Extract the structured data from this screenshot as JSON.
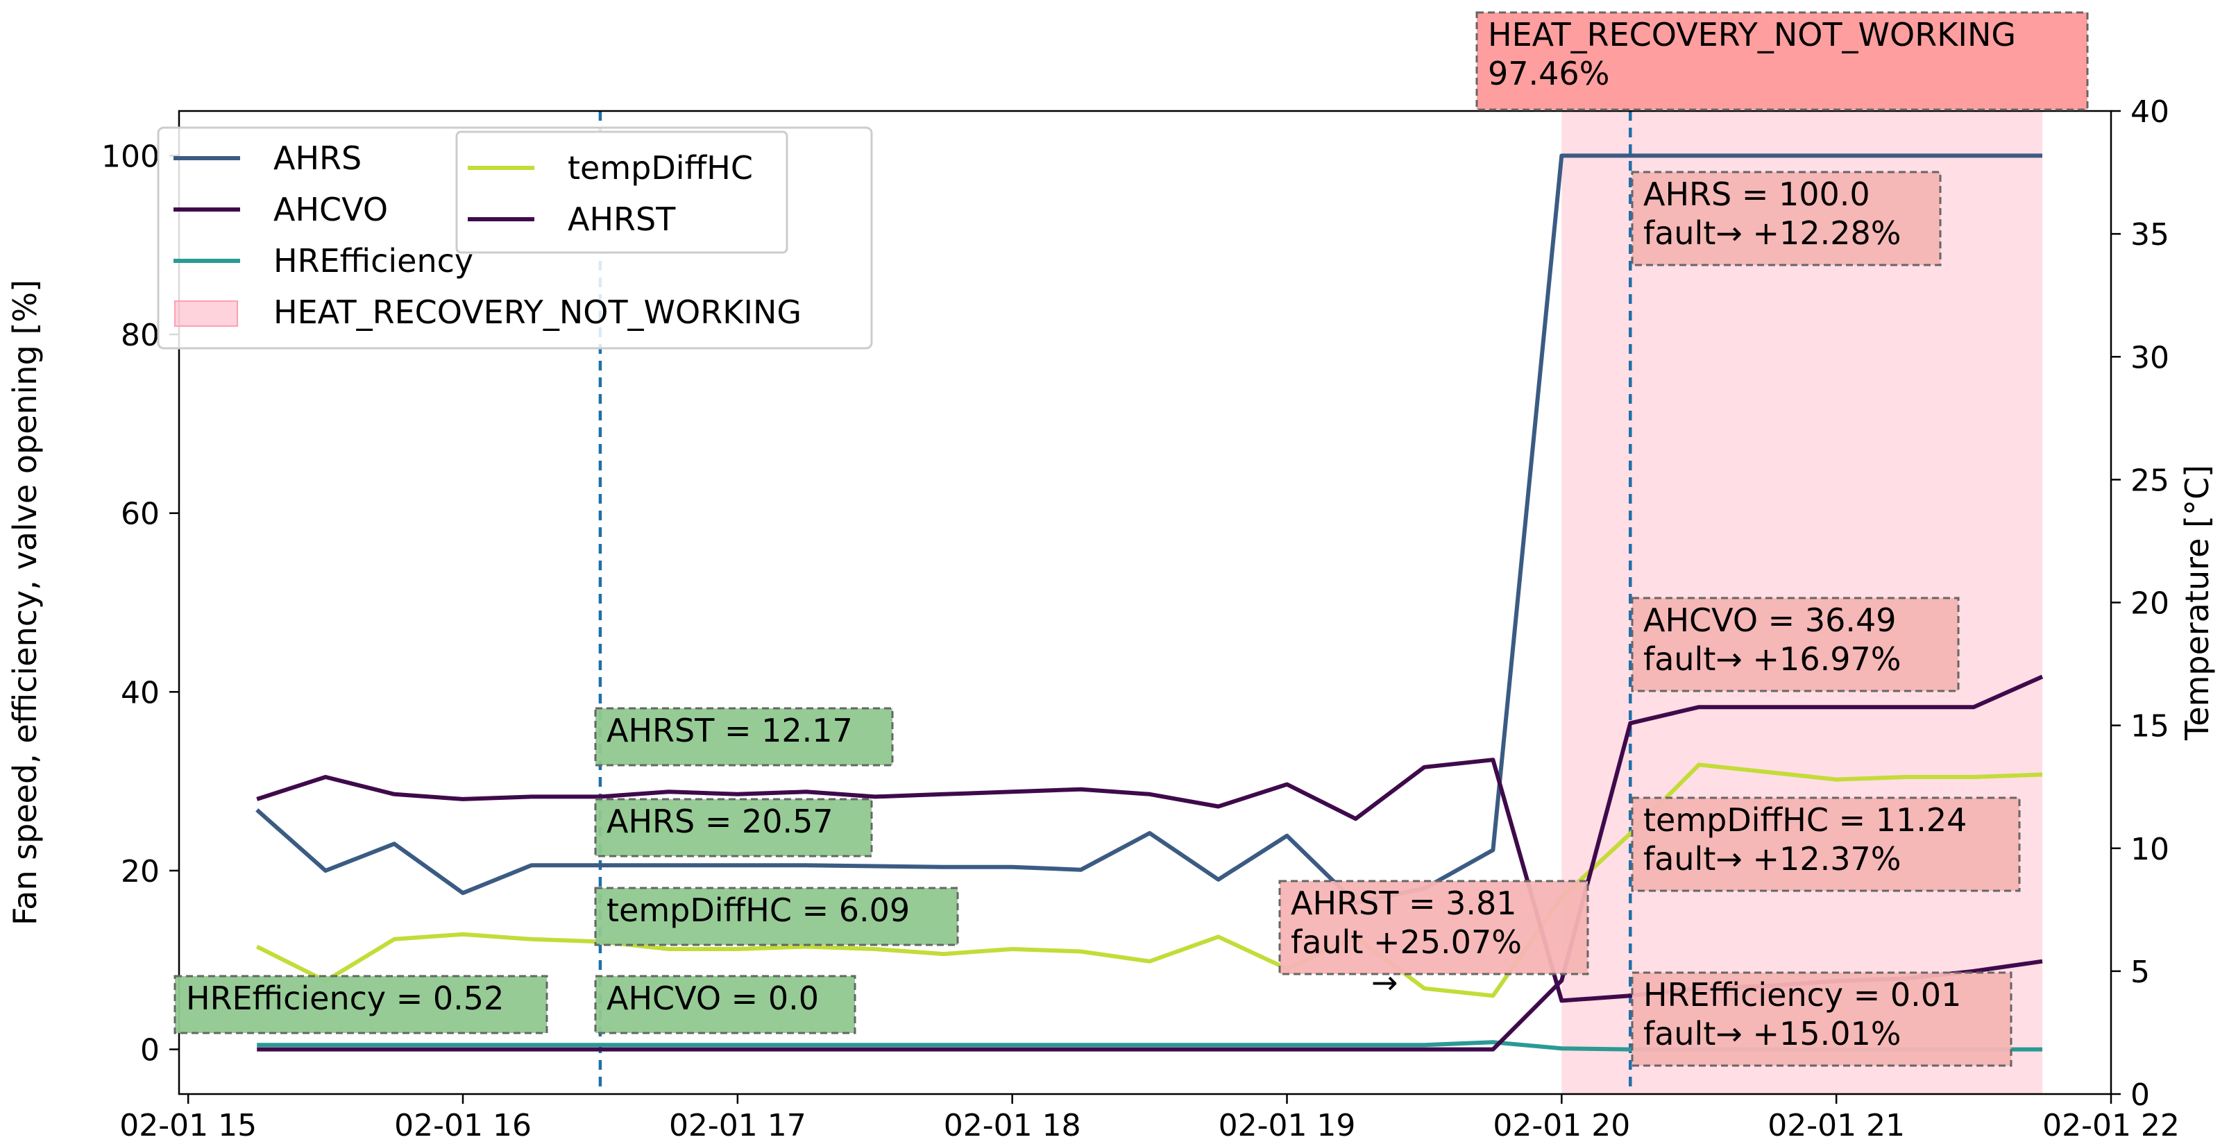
{
  "chart_data": {
    "type": "line",
    "x_format": "MM-DD HH",
    "x_ticks": [
      {
        "t": "2024-02-01T15:00",
        "label": "02-01 15"
      },
      {
        "t": "2024-02-01T16:00",
        "label": "02-01 16"
      },
      {
        "t": "2024-02-01T17:00",
        "label": "02-01 17"
      },
      {
        "t": "2024-02-01T18:00",
        "label": "02-01 18"
      },
      {
        "t": "2024-02-01T19:00",
        "label": "02-01 19"
      },
      {
        "t": "2024-02-01T20:00",
        "label": "02-01 20"
      },
      {
        "t": "2024-02-01T21:00",
        "label": "02-01 21"
      },
      {
        "t": "2024-02-01T22:00",
        "label": "02-01 22"
      }
    ],
    "x_range": [
      "2024-02-01T14:58",
      "2024-02-01T22:00"
    ],
    "y_left": {
      "label": "Fan speed, efficiency, valve opening [%]",
      "range": [
        -5,
        105
      ],
      "ticks": [
        0,
        20,
        40,
        60,
        80,
        100
      ]
    },
    "y_right": {
      "label": "Temperature [°C]",
      "range": [
        0,
        40
      ],
      "ticks": [
        0,
        5,
        10,
        15,
        20,
        25,
        30,
        35,
        40
      ]
    },
    "grid": false,
    "legend_placement": "upper-left",
    "x": [
      "2024-02-01T15:15",
      "2024-02-01T15:30",
      "2024-02-01T15:45",
      "2024-02-01T16:00",
      "2024-02-01T16:15",
      "2024-02-01T16:30",
      "2024-02-01T16:45",
      "2024-02-01T17:00",
      "2024-02-01T17:15",
      "2024-02-01T17:30",
      "2024-02-01T17:45",
      "2024-02-01T18:00",
      "2024-02-01T18:15",
      "2024-02-01T18:30",
      "2024-02-01T18:45",
      "2024-02-01T19:00",
      "2024-02-01T19:15",
      "2024-02-01T19:30",
      "2024-02-01T19:45",
      "2024-02-01T20:00",
      "2024-02-01T20:15",
      "2024-02-01T20:30",
      "2024-02-01T20:45",
      "2024-02-01T21:00",
      "2024-02-01T21:15",
      "2024-02-01T21:30",
      "2024-02-01T21:45"
    ],
    "series": [
      {
        "name": "AHRS",
        "axis": "left",
        "color": "#3b5b83",
        "values": [
          26.8,
          20.0,
          23.0,
          17.5,
          20.6,
          20.6,
          20.6,
          20.6,
          20.6,
          20.5,
          20.4,
          20.4,
          20.1,
          24.2,
          19.0,
          23.9,
          16.4,
          18.0,
          22.3,
          100.0,
          100.0,
          100.0,
          100.0,
          100.0,
          100.0,
          100.0,
          100.0
        ]
      },
      {
        "name": "AHCVO",
        "axis": "left",
        "color": "#3f0a4b",
        "values": [
          0,
          0,
          0,
          0,
          0,
          0,
          0,
          0,
          0,
          0,
          0,
          0,
          0,
          0,
          0,
          0,
          0,
          0,
          0,
          7.7,
          36.5,
          38.3,
          38.3,
          38.3,
          38.3,
          38.3,
          41.7
        ]
      },
      {
        "name": "HREfficiency",
        "axis": "left",
        "color": "#2a9a95",
        "values": [
          0.5,
          0.5,
          0.5,
          0.5,
          0.5,
          0.5,
          0.5,
          0.5,
          0.5,
          0.5,
          0.5,
          0.5,
          0.5,
          0.5,
          0.5,
          0.5,
          0.5,
          0.5,
          0.8,
          0.1,
          0.0,
          0.0,
          0.0,
          0.0,
          0.0,
          0.0,
          0.0
        ]
      },
      {
        "name": "tempDiffHC",
        "axis": "right",
        "color": "#c3dc38",
        "values": [
          6.0,
          4.6,
          6.3,
          6.5,
          6.3,
          6.2,
          5.9,
          5.9,
          6.0,
          5.9,
          5.7,
          5.9,
          5.8,
          5.4,
          6.4,
          5.1,
          6.4,
          4.3,
          4.0,
          8.0,
          10.6,
          13.4,
          13.1,
          12.8,
          12.9,
          12.9,
          13.0
        ]
      },
      {
        "name": "AHRST",
        "axis": "right",
        "color": "#3f0a4b",
        "values": [
          12.0,
          12.9,
          12.2,
          12.0,
          12.1,
          12.1,
          12.3,
          12.2,
          12.3,
          12.1,
          12.2,
          12.3,
          12.4,
          12.2,
          11.7,
          12.6,
          11.2,
          13.3,
          13.6,
          3.8,
          4.0,
          4.3,
          4.4,
          4.6,
          4.7,
          5.0,
          5.4
        ]
      }
    ],
    "fault_region": {
      "label": "HEAT_RECOVERY_NOT_WORKING",
      "start": "2024-02-01T20:00",
      "end": "2024-02-01T21:45",
      "color": "#ffb6c5"
    },
    "vlines": [
      "2024-02-01T16:30",
      "2024-02-01T20:15"
    ],
    "annotations": {
      "fault_header": {
        "lines": [
          "HEAT_RECOVERY_NOT_WORKING",
          "97.46%"
        ],
        "color": "#ff9999"
      },
      "normal": [
        {
          "lines": [
            "AHRST = 12.17"
          ],
          "color": "#90c890"
        },
        {
          "lines": [
            "AHRS = 20.57"
          ],
          "color": "#90c890"
        },
        {
          "lines": [
            "tempDiffHC = 6.09"
          ],
          "color": "#90c890"
        },
        {
          "lines": [
            "HREfficiency = 0.52"
          ],
          "color": "#90c890"
        },
        {
          "lines": [
            "AHCVO = 0.0"
          ],
          "color": "#90c890"
        }
      ],
      "fault": [
        {
          "lines": [
            "AHRS = 100.0",
            "fault→ +12.28%"
          ],
          "color": "#f5b4b4"
        },
        {
          "lines": [
            "AHCVO = 36.49",
            "fault→ +16.97%"
          ],
          "color": "#f5b4b4"
        },
        {
          "lines": [
            "tempDiffHC = 11.24",
            "fault→ +12.37%"
          ],
          "color": "#f5b4b4"
        },
        {
          "lines": [
            "HREfficiency = 0.01",
            "fault→ +15.01%"
          ],
          "color": "#f5b4b4"
        },
        {
          "lines": [
            "AHRST = 3.81",
            "fault    +25.07%"
          ],
          "color": "#f5b4b4"
        }
      ],
      "stray_arrow": "→"
    },
    "legend": {
      "col1": [
        "AHRS",
        "AHCVO",
        "HREfficiency",
        "HEAT_RECOVERY_NOT_WORKING"
      ],
      "col2": [
        "tempDiffHC",
        "AHRST"
      ]
    }
  }
}
